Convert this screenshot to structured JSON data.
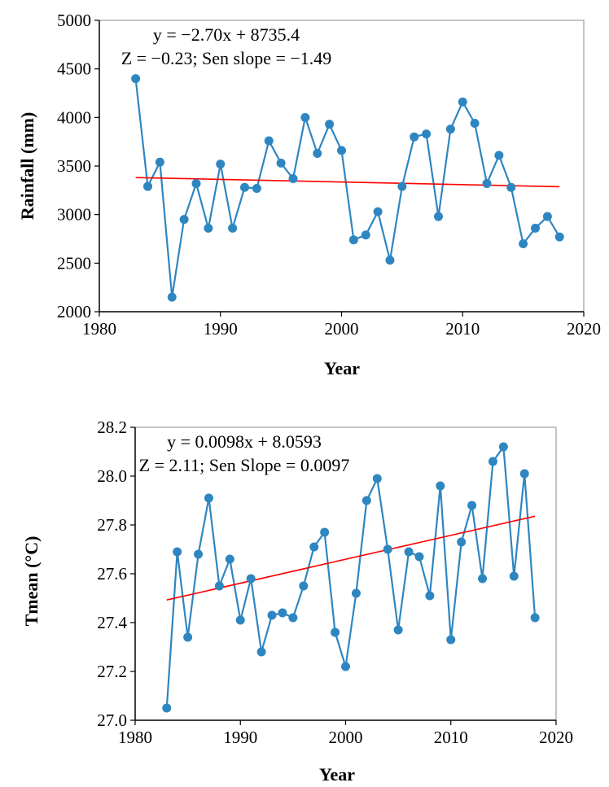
{
  "colors": {
    "series": "#2E86C1",
    "trend": "#FF0000",
    "axis": "#000000",
    "frame": "#888888"
  },
  "chart_data": [
    {
      "type": "line",
      "xlabel": "Year",
      "ylabel": "Rainfall (mm)",
      "xlim": [
        1980,
        2020
      ],
      "ylim": [
        2000,
        5000
      ],
      "xticks": [
        1980,
        1990,
        2000,
        2010,
        2020
      ],
      "yticks": [
        2000,
        2500,
        3000,
        3500,
        4000,
        4500,
        5000
      ],
      "tick_decimals": 0,
      "annotation_line1": "y = −2.70x + 8735.4",
      "annotation_line2": "Z = −0.23; Sen slope = −1.49",
      "series": [
        {
          "x": [
            1983,
            1984,
            1985,
            1986,
            1987,
            1988,
            1989,
            1990,
            1991,
            1992,
            1993,
            1994,
            1995,
            1996,
            1997,
            1998,
            1999,
            2000,
            2001,
            2002,
            2003,
            2004,
            2005,
            2006,
            2007,
            2008,
            2009,
            2010,
            2011,
            2012,
            2013,
            2014,
            2015,
            2016,
            2017,
            2018
          ],
          "y": [
            4400,
            3290,
            3540,
            2150,
            2950,
            3320,
            2860,
            3520,
            2860,
            3280,
            3270,
            3760,
            3530,
            3370,
            4000,
            3630,
            3930,
            3660,
            2740,
            2790,
            3030,
            2530,
            3290,
            3800,
            3830,
            2980,
            3880,
            4160,
            3940,
            3320,
            3610,
            3280,
            2700,
            2860,
            2980,
            2770
          ]
        }
      ],
      "trend": {
        "slope": -2.7,
        "intercept": 8735.4,
        "x_start": 1983,
        "x_end": 2018
      }
    },
    {
      "type": "line",
      "xlabel": "Year",
      "ylabel": "Tmean (°C)",
      "xlim": [
        1980,
        2020
      ],
      "ylim": [
        27.0,
        28.2
      ],
      "xticks": [
        1980,
        1990,
        2000,
        2010,
        2020
      ],
      "yticks": [
        27.0,
        27.2,
        27.4,
        27.6,
        27.8,
        28.0,
        28.2
      ],
      "tick_decimals": 1,
      "annotation_line1": "y = 0.0098x + 8.0593",
      "annotation_line2": "Z = 2.11; Sen Slope = 0.0097",
      "series": [
        {
          "x": [
            1983,
            1984,
            1985,
            1986,
            1987,
            1988,
            1989,
            1990,
            1991,
            1992,
            1993,
            1994,
            1995,
            1996,
            1997,
            1998,
            1999,
            2000,
            2001,
            2002,
            2003,
            2004,
            2005,
            2006,
            2007,
            2008,
            2009,
            2010,
            2011,
            2012,
            2013,
            2014,
            2015,
            2016,
            2017,
            2018
          ],
          "y": [
            27.05,
            27.69,
            27.34,
            27.68,
            27.91,
            27.55,
            27.66,
            27.41,
            27.58,
            27.28,
            27.43,
            27.44,
            27.42,
            27.55,
            27.71,
            27.77,
            27.36,
            27.22,
            27.52,
            27.9,
            27.99,
            27.7,
            27.37,
            27.69,
            27.67,
            27.51,
            27.96,
            27.33,
            27.73,
            27.88,
            27.58,
            28.06,
            28.12,
            27.59,
            28.01,
            27.42
          ]
        }
      ],
      "trend": {
        "slope": 0.0098,
        "intercept": 8.0593,
        "x_start": 1983,
        "x_end": 2018
      }
    }
  ]
}
